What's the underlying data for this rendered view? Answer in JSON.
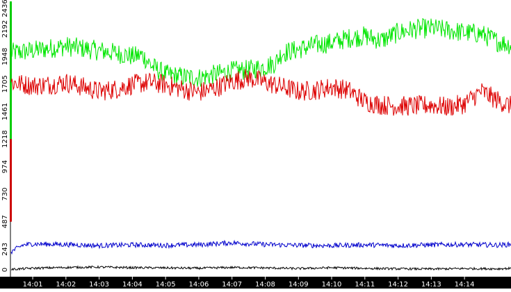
{
  "chart_data": {
    "type": "line",
    "title": "",
    "xlabel": "",
    "ylabel": "",
    "ylim": [
      0,
      2436
    ],
    "y_ticks": [
      0,
      243,
      487,
      730,
      974,
      1218,
      1461,
      1705,
      1948,
      2192,
      2436
    ],
    "x_ticks": [
      "14:01",
      "14:02",
      "14:03",
      "14:04",
      "14:05",
      "14:06",
      "14:07",
      "14:08",
      "14:09",
      "14:10",
      "14:11",
      "14:12",
      "14:13",
      "14:14"
    ],
    "x_range_minutes": [
      0.35,
      15.4
    ],
    "legend": "none",
    "grid": false,
    "background": "#ffffff",
    "axis_band_color": "#000000",
    "x_tick_label_color": "#ffffff",
    "y_marker_colors": [
      "#00cc00",
      "#cc0000"
    ],
    "y_marker_ranges": [
      [
        1218,
        2436
      ],
      [
        487,
        1218
      ]
    ],
    "series": [
      {
        "color": "#00e600",
        "noise": 90,
        "values": [
          [
            0.35,
            1980
          ],
          [
            1,
            2000
          ],
          [
            1.5,
            2020
          ],
          [
            2,
            2040
          ],
          [
            2.5,
            2020
          ],
          [
            3,
            2000
          ],
          [
            3.5,
            1980
          ],
          [
            4,
            1950
          ],
          [
            4.3,
            1960
          ],
          [
            4.6,
            1860
          ],
          [
            5,
            1790
          ],
          [
            5.5,
            1770
          ],
          [
            6,
            1760
          ],
          [
            6.5,
            1790
          ],
          [
            7,
            1820
          ],
          [
            7.5,
            1830
          ],
          [
            8,
            1860
          ],
          [
            8.3,
            1890
          ],
          [
            8.5,
            1980
          ],
          [
            9,
            2010
          ],
          [
            9.5,
            2050
          ],
          [
            10,
            2070
          ],
          [
            10.5,
            2110
          ],
          [
            11,
            2130
          ],
          [
            11.5,
            2090
          ],
          [
            12,
            2160
          ],
          [
            12.5,
            2190
          ],
          [
            13,
            2200
          ],
          [
            13.5,
            2180
          ],
          [
            14,
            2160
          ],
          [
            14.5,
            2150
          ],
          [
            15,
            2080
          ],
          [
            15.4,
            2050
          ]
        ]
      },
      {
        "color": "#dd0000",
        "noise": 90,
        "values": [
          [
            0.35,
            1720
          ],
          [
            1,
            1690
          ],
          [
            1.5,
            1700
          ],
          [
            2,
            1720
          ],
          [
            2.5,
            1680
          ],
          [
            3,
            1640
          ],
          [
            3.5,
            1660
          ],
          [
            4,
            1700
          ],
          [
            4.5,
            1720
          ],
          [
            5,
            1700
          ],
          [
            5.5,
            1660
          ],
          [
            6,
            1630
          ],
          [
            6.5,
            1670
          ],
          [
            7,
            1730
          ],
          [
            7.5,
            1760
          ],
          [
            8,
            1720
          ],
          [
            8.5,
            1680
          ],
          [
            9,
            1640
          ],
          [
            9.5,
            1650
          ],
          [
            10,
            1680
          ],
          [
            10.5,
            1650
          ],
          [
            11,
            1550
          ],
          [
            11.5,
            1520
          ],
          [
            12,
            1510
          ],
          [
            12.5,
            1510
          ],
          [
            13,
            1520
          ],
          [
            13.5,
            1500
          ],
          [
            14,
            1530
          ],
          [
            14.5,
            1640
          ],
          [
            15,
            1560
          ],
          [
            15.4,
            1510
          ]
        ]
      },
      {
        "color": "#0000cc",
        "noise": 22,
        "values": [
          [
            0.35,
            220
          ],
          [
            0.7,
            280
          ],
          [
            1,
            290
          ],
          [
            2,
            285
          ],
          [
            3,
            275
          ],
          [
            4,
            282
          ],
          [
            5,
            278
          ],
          [
            6,
            283
          ],
          [
            7,
            300
          ],
          [
            8,
            285
          ],
          [
            9,
            278
          ],
          [
            10,
            275
          ],
          [
            11,
            282
          ],
          [
            12,
            276
          ],
          [
            13,
            282
          ],
          [
            14,
            285
          ],
          [
            15,
            280
          ],
          [
            15.4,
            285
          ]
        ]
      },
      {
        "color": "#000000",
        "noise": 10,
        "values": [
          [
            0.35,
            65
          ],
          [
            1,
            75
          ],
          [
            2,
            82
          ],
          [
            3,
            85
          ],
          [
            4,
            80
          ],
          [
            5,
            78
          ],
          [
            6,
            75
          ],
          [
            7,
            82
          ],
          [
            8,
            78
          ],
          [
            9,
            72
          ],
          [
            10,
            80
          ],
          [
            11,
            74
          ],
          [
            12,
            70
          ],
          [
            13,
            68
          ],
          [
            14,
            72
          ],
          [
            15,
            70
          ],
          [
            15.4,
            74
          ]
        ]
      }
    ]
  }
}
